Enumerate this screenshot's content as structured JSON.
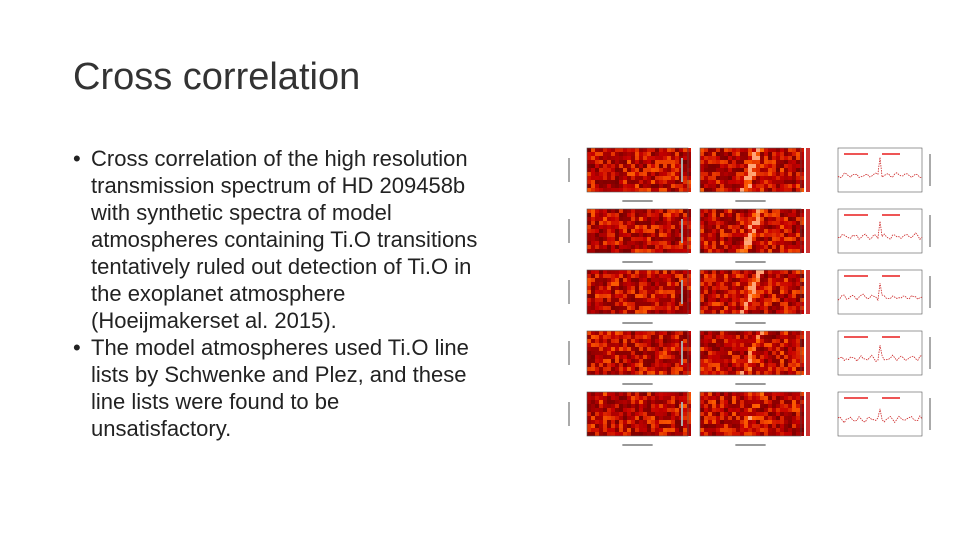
{
  "slide": {
    "title": "Cross correlation",
    "bullets": [
      {
        "lines": [
          "Cross correlation of the high resolution",
          "transmission spectrum of HD 209458b",
          "with synthetic spectra of model",
          "atmospheres containing Ti.O transitions",
          "tentatively ruled out detection of Ti.O in",
          "the exoplanet atmosphere",
          "(Hoeijmakerset al. 2015)."
        ]
      },
      {
        "lines": [
          "The model atmospheres used Ti.O line",
          "lists by Schwenke and Plez, and these",
          "line lists were found to be",
          "unsatisfactory."
        ]
      }
    ]
  }
}
